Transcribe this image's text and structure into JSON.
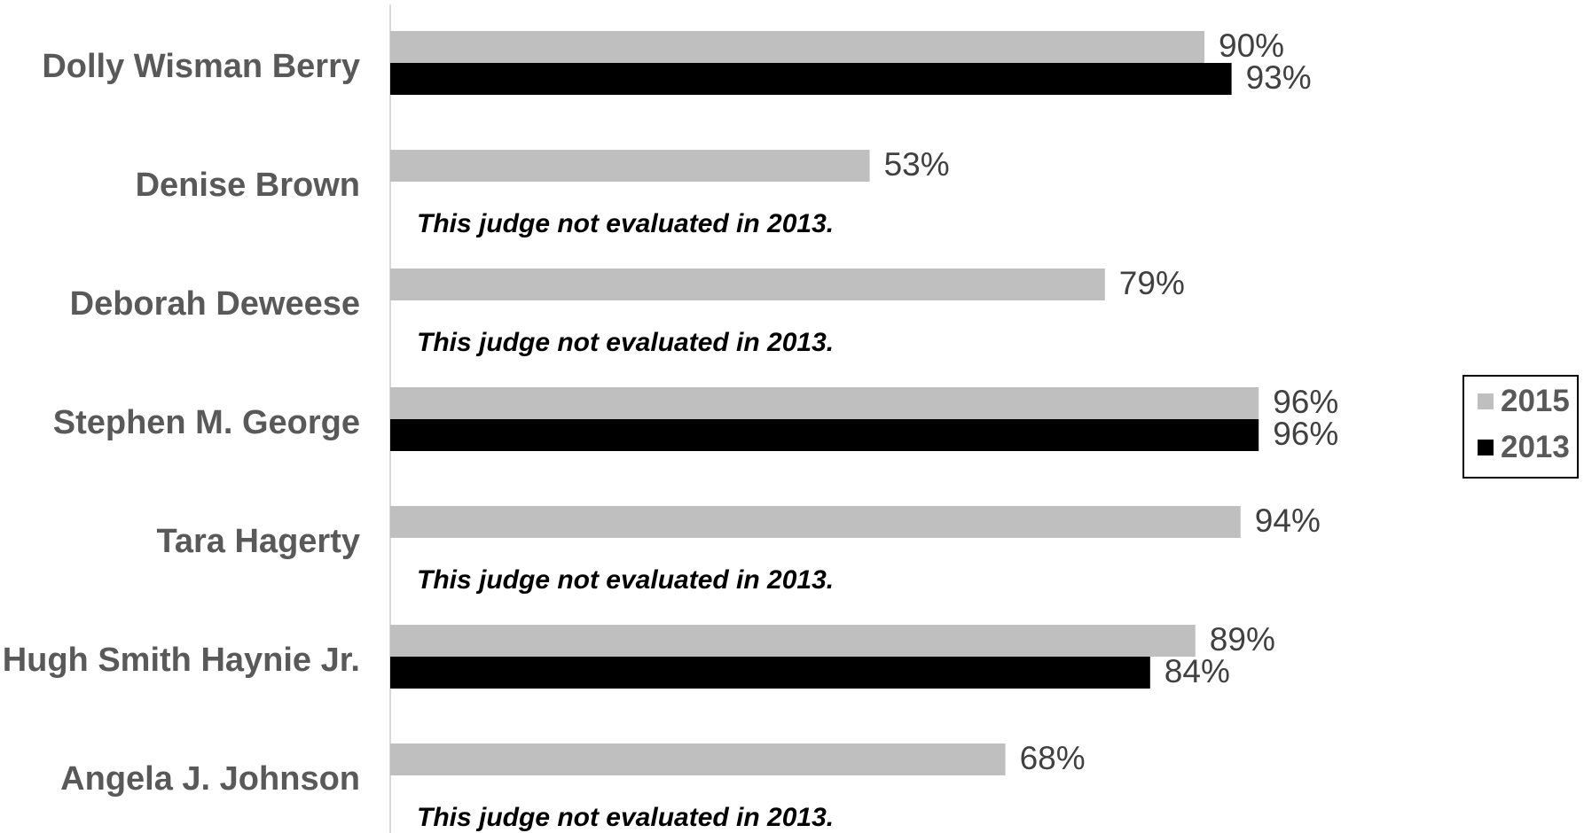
{
  "chart_data": {
    "type": "bar",
    "orientation": "horizontal",
    "categories": [
      "Dolly Wisman Berry",
      "Denise Brown",
      "Deborah Deweese",
      "Stephen M. George",
      "Tara Hagerty",
      "Hugh Smith Haynie Jr.",
      "Angela J. Johnson"
    ],
    "series": [
      {
        "name": "2015",
        "color": "#bfbfbf",
        "values": [
          90,
          53,
          79,
          96,
          94,
          89,
          68
        ],
        "labels": [
          "90%",
          "53%",
          "79%",
          "96%",
          "94%",
          "89%",
          "68%"
        ]
      },
      {
        "name": "2013",
        "color": "#000000",
        "values": [
          93,
          null,
          null,
          96,
          null,
          84,
          null
        ],
        "labels": [
          "93%",
          null,
          null,
          "96%",
          null,
          "84%",
          null
        ]
      }
    ],
    "annotations": [
      null,
      "This judge not evaluated in 2013.",
      "This judge not evaluated in 2013.",
      null,
      "This judge not evaluated in 2013.",
      null,
      "This judge not evaluated in 2013."
    ],
    "xlim": [
      0,
      100
    ],
    "grid": false,
    "legend": "right"
  }
}
